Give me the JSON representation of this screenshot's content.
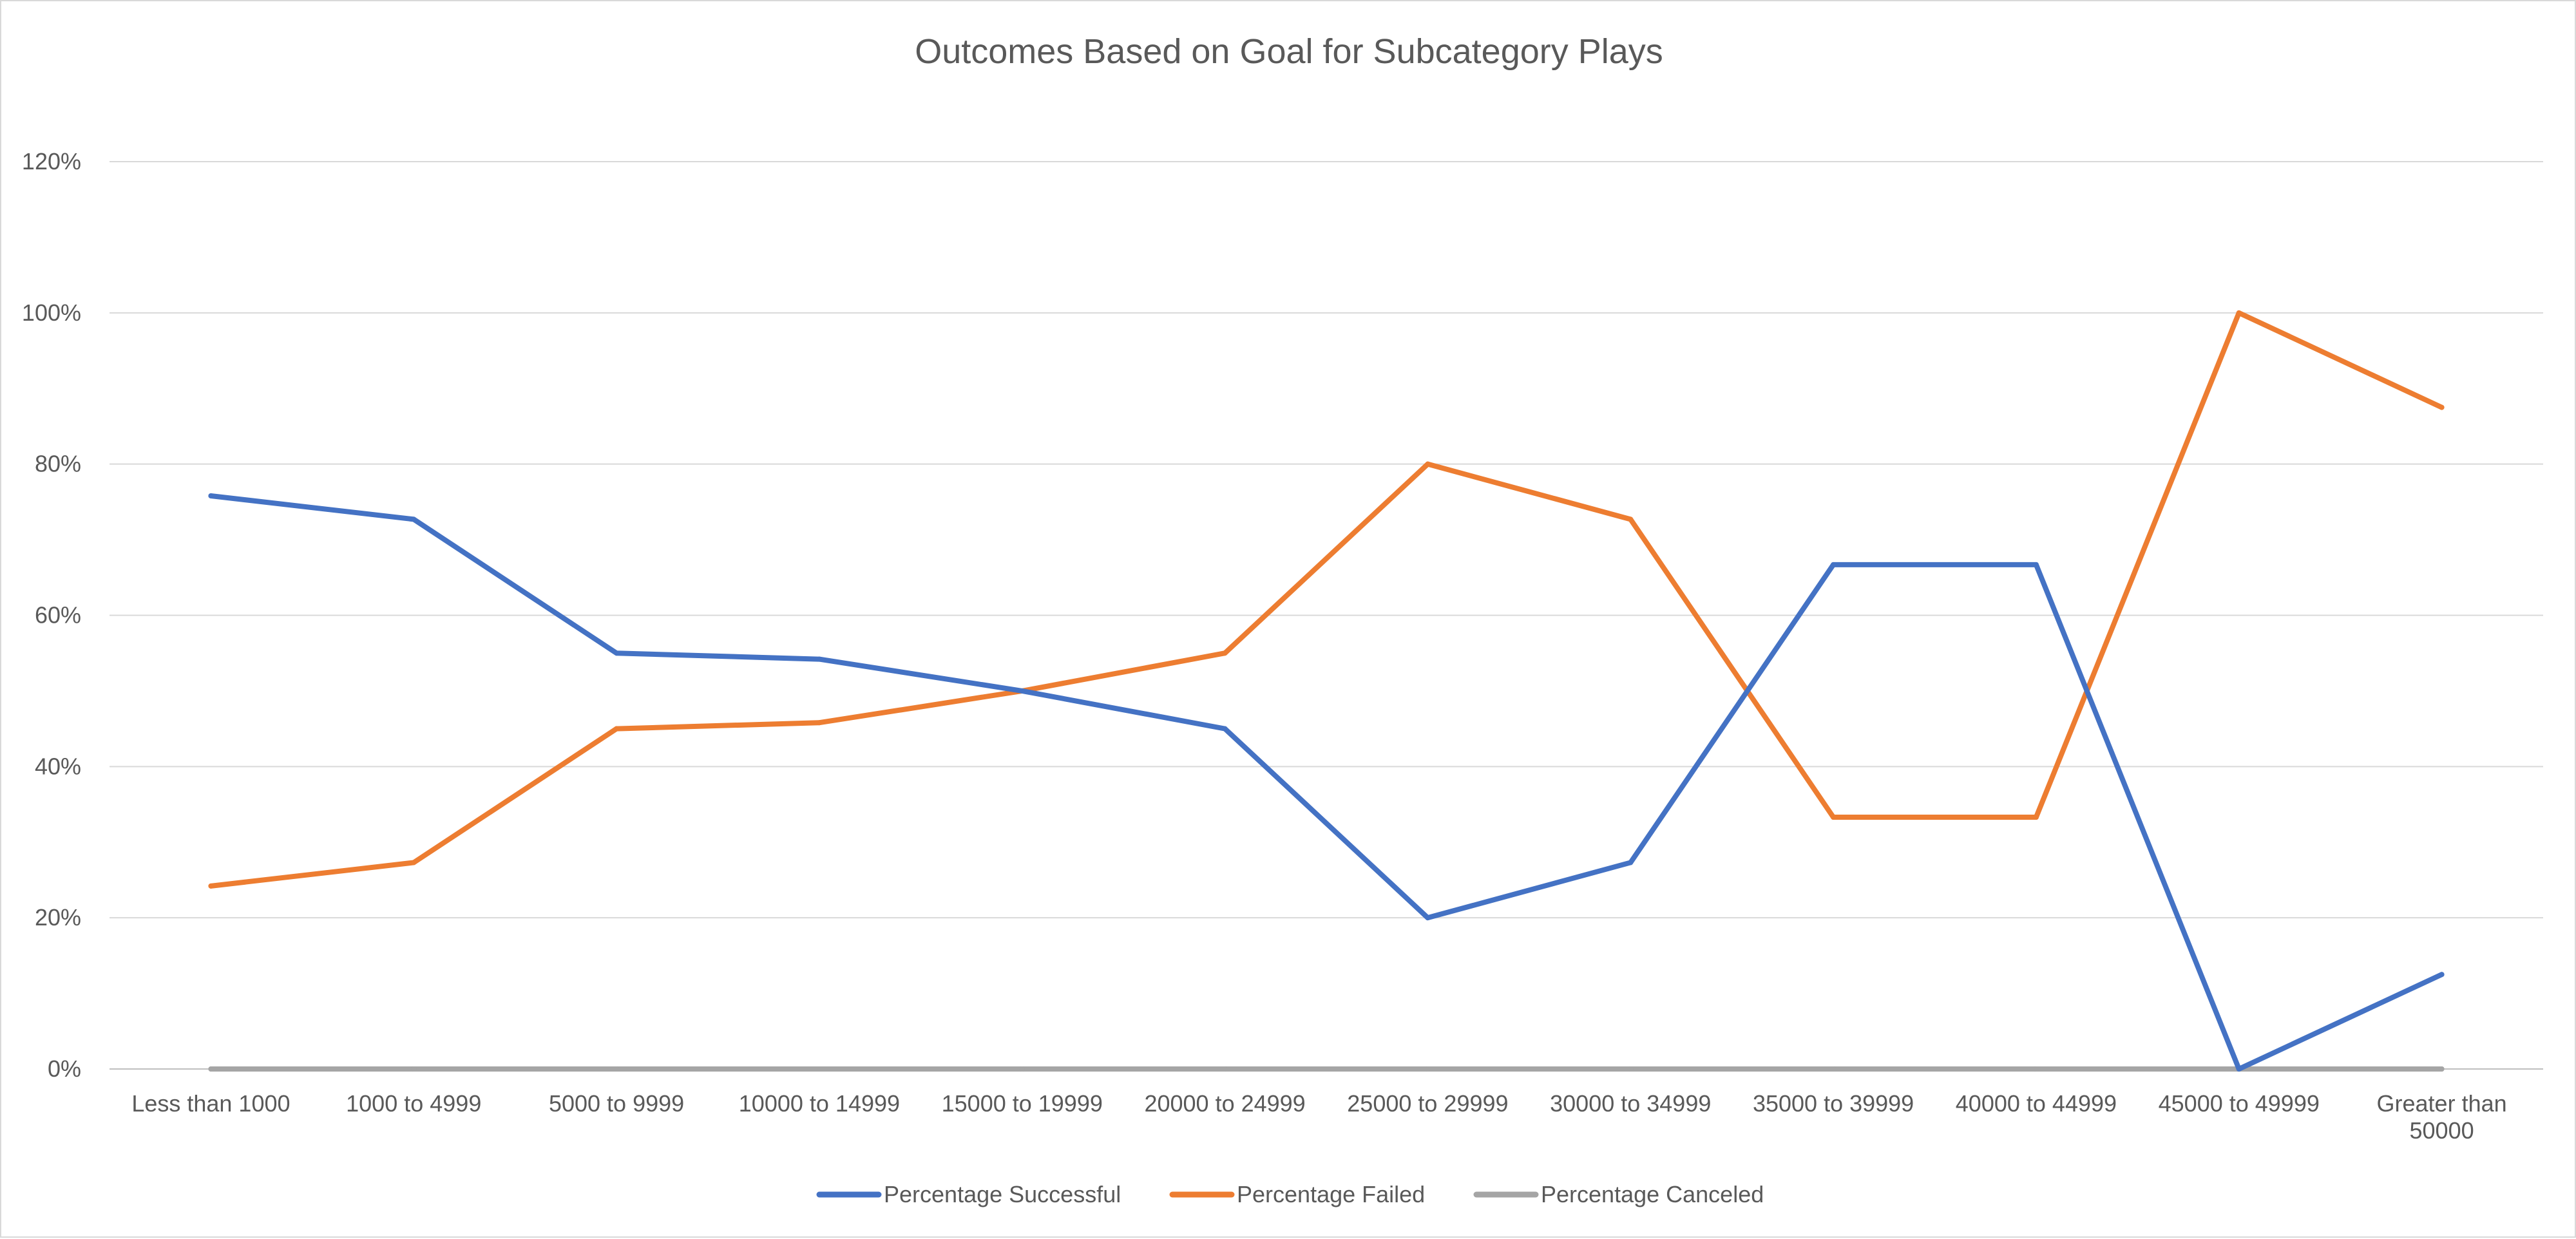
{
  "chart_data": {
    "type": "line",
    "title": "Outcomes Based on Goal for Subcategory Plays",
    "xlabel": "",
    "ylabel": "",
    "categories": [
      "Less than 1000",
      "1000 to 4999",
      "5000 to 9999",
      "10000 to 14999",
      "15000 to 19999",
      "20000 to 24999",
      "25000 to 29999",
      "30000 to 34999",
      "35000 to 39999",
      "40000 to 44999",
      "45000 to 49999",
      "Greater than 50000"
    ],
    "y_ticks": [
      "0%",
      "20%",
      "40%",
      "60%",
      "80%",
      "100%",
      "120%"
    ],
    "ylim": [
      0,
      120
    ],
    "y_unit": "%",
    "grid": true,
    "legend_position": "bottom",
    "series": [
      {
        "name": "Percentage Successful",
        "color": "#4472c4",
        "values": [
          75.8,
          72.7,
          55,
          54.2,
          50,
          45,
          20,
          27.3,
          66.7,
          66.7,
          0,
          12.5
        ]
      },
      {
        "name": "Percentage Failed",
        "color": "#ed7d31",
        "values": [
          24.2,
          27.3,
          45,
          45.8,
          50,
          55,
          80,
          72.7,
          33.3,
          33.3,
          100,
          87.5
        ]
      },
      {
        "name": "Percentage Canceled",
        "color": "#a5a5a5",
        "values": [
          0,
          0,
          0,
          0,
          0,
          0,
          0,
          0,
          0,
          0,
          0,
          0
        ]
      }
    ]
  }
}
